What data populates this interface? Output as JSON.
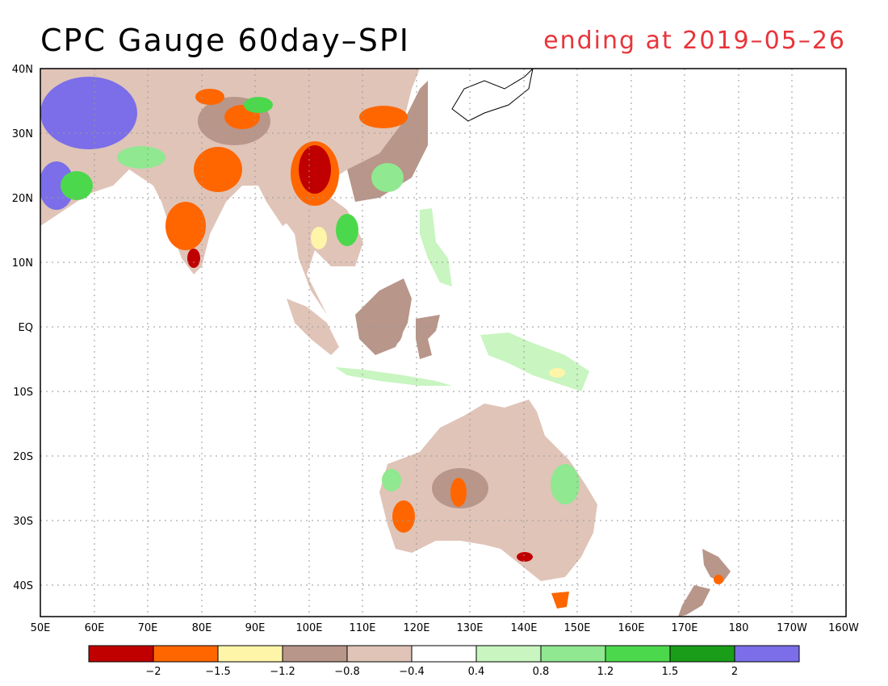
{
  "title": "CPC Gauge 60day–SPI",
  "subtitle": "ending at 2019–05–26",
  "colors": {
    "subtitle": "#e8343b",
    "bins": [
      "#c00000",
      "#ff6600",
      "#fff5a8",
      "#b8968a",
      "#e0c4b8",
      "#ffffff",
      "#c8f5c0",
      "#90e890",
      "#4cd84c",
      "#1a9e1a",
      "#7b6ee8"
    ]
  },
  "lat_labels": [
    "40N",
    "30N",
    "20N",
    "10N",
    "EQ",
    "10S",
    "20S",
    "30S",
    "40S"
  ],
  "lon_labels": [
    "50E",
    "60E",
    "70E",
    "80E",
    "90E",
    "100E",
    "110E",
    "120E",
    "130E",
    "140E",
    "150E",
    "160E",
    "170E",
    "180",
    "170W",
    "160W"
  ],
  "legend": {
    "labels": [
      "−2",
      "−1.5",
      "−1.2",
      "−0.8",
      "−0.4",
      "0.4",
      "0.8",
      "1.2",
      "1.5",
      "2"
    ]
  },
  "chart_data": {
    "type": "heatmap",
    "variable": "60day-SPI",
    "ending_date": "2019-05-26",
    "lon_range": [
      "50E",
      "160W"
    ],
    "lat_range": [
      "45S",
      "40N"
    ],
    "grid": true,
    "bin_edges": [
      -2,
      -1.5,
      -1.2,
      -0.8,
      -0.4,
      0.4,
      0.8,
      1.2,
      1.5,
      2
    ]
  }
}
